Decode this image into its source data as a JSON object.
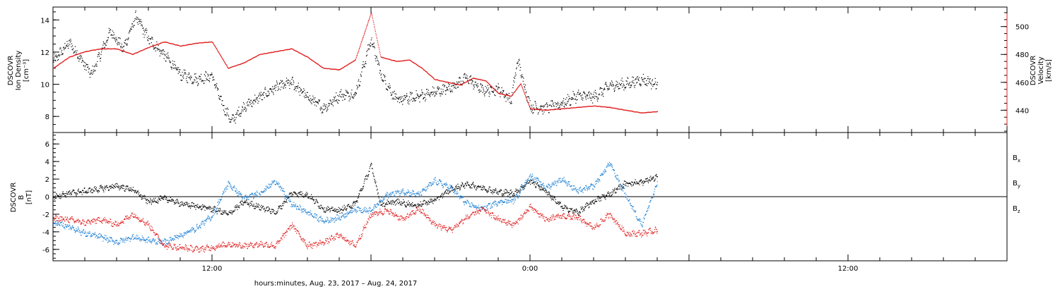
{
  "chart_data": [
    {
      "type": "scatter",
      "panel": "top",
      "ylabel": [
        "DSCOVR",
        "Ion Density",
        "[cm⁻³]"
      ],
      "ylabel_right": [
        "DSCOVR",
        "Velocity",
        "[km/s]"
      ],
      "ylim": [
        7,
        14.8
      ],
      "ylim_right": [
        424,
        514
      ],
      "yticks": [
        8,
        10,
        12,
        14
      ],
      "yticks_right": [
        440,
        460,
        480,
        500
      ],
      "series": [
        {
          "name": "",
          "axis": "left",
          "color": "#000000",
          "points": [
            [
              0,
              11.4
            ],
            [
              0.5,
              12.6
            ],
            [
              1.2,
              10.6
            ],
            [
              1.8,
              13.3
            ],
            [
              2.2,
              12.2
            ],
            [
              2.6,
              14.2
            ],
            [
              3.0,
              12.8
            ],
            [
              3.5,
              11.8
            ],
            [
              4.0,
              10.6
            ],
            [
              4.5,
              10.3
            ],
            [
              5.0,
              10.5
            ],
            [
              5.3,
              8.8
            ],
            [
              5.6,
              7.7
            ],
            [
              6.0,
              8.6
            ],
            [
              6.5,
              9.2
            ],
            [
              7.0,
              9.8
            ],
            [
              7.5,
              10.1
            ],
            [
              8.0,
              9.2
            ],
            [
              8.5,
              8.5
            ],
            [
              9.0,
              9.3
            ],
            [
              9.5,
              9.4
            ],
            [
              10.0,
              12.8
            ],
            [
              10.3,
              10.6
            ],
            [
              10.8,
              9.0
            ],
            [
              11.4,
              9.2
            ],
            [
              12.0,
              9.5
            ],
            [
              12.5,
              9.8
            ],
            [
              13.0,
              10.4
            ],
            [
              13.5,
              9.6
            ],
            [
              14.0,
              9.7
            ],
            [
              14.4,
              9.0
            ],
            [
              14.6,
              11.5
            ],
            [
              15.0,
              8.6
            ],
            [
              15.5,
              8.5
            ],
            [
              16.0,
              8.8
            ],
            [
              16.5,
              9.3
            ],
            [
              17.0,
              9.2
            ],
            [
              17.5,
              9.9
            ],
            [
              18.0,
              10.0
            ],
            [
              18.5,
              10.3
            ],
            [
              19.0,
              10.0
            ]
          ]
        },
        {
          "name": "",
          "axis": "right",
          "color": "#e02020",
          "points": [
            [
              0,
              470
            ],
            [
              0.5,
              478
            ],
            [
              1.0,
              482
            ],
            [
              1.5,
              484
            ],
            [
              2.0,
              484
            ],
            [
              2.5,
              480
            ],
            [
              3.0,
              485
            ],
            [
              3.5,
              489
            ],
            [
              4.0,
              486
            ],
            [
              4.5,
              488
            ],
            [
              5.0,
              489
            ],
            [
              5.5,
              470
            ],
            [
              6.0,
              474
            ],
            [
              6.5,
              480
            ],
            [
              7.0,
              482
            ],
            [
              7.5,
              484
            ],
            [
              8.0,
              478
            ],
            [
              8.5,
              470
            ],
            [
              9.0,
              469
            ],
            [
              9.5,
              476
            ],
            [
              10.0,
              510
            ],
            [
              10.3,
              478
            ],
            [
              10.8,
              475
            ],
            [
              11.2,
              476
            ],
            [
              11.6,
              470
            ],
            [
              12.0,
              462
            ],
            [
              12.4,
              460
            ],
            [
              12.8,
              458
            ],
            [
              13.2,
              463
            ],
            [
              13.6,
              461
            ],
            [
              14.0,
              452
            ],
            [
              14.4,
              450
            ],
            [
              14.7,
              459
            ],
            [
              15.0,
              441
            ],
            [
              15.5,
              440
            ],
            [
              16.0,
              441
            ],
            [
              16.5,
              442
            ],
            [
              17.0,
              443
            ],
            [
              17.5,
              442
            ],
            [
              18.0,
              440
            ],
            [
              18.5,
              438
            ],
            [
              19.0,
              439
            ]
          ]
        }
      ]
    },
    {
      "type": "scatter",
      "panel": "bottom",
      "ylabel": [
        "DSCOVR",
        "B",
        "[nT]"
      ],
      "ylim": [
        -7.3,
        7.3
      ],
      "yticks": [
        -6,
        -4,
        -2,
        0,
        2,
        4,
        6
      ],
      "zero_line": true,
      "series": [
        {
          "name": "Bx",
          "color": "#000000",
          "points": [
            [
              0,
              0
            ],
            [
              0.5,
              0.4
            ],
            [
              1.0,
              0.6
            ],
            [
              1.5,
              0.9
            ],
            [
              2.0,
              1.2
            ],
            [
              2.5,
              0.8
            ],
            [
              3.0,
              -0.6
            ],
            [
              3.5,
              -0.2
            ],
            [
              4.0,
              -0.8
            ],
            [
              4.5,
              -1.1
            ],
            [
              5.0,
              -1.4
            ],
            [
              5.5,
              -2.0
            ],
            [
              6.0,
              -0.6
            ],
            [
              6.5,
              -1.2
            ],
            [
              7.0,
              -1.8
            ],
            [
              7.5,
              0.4
            ],
            [
              8.0,
              0.2
            ],
            [
              8.5,
              -1.4
            ],
            [
              9.0,
              -1.6
            ],
            [
              9.5,
              -0.8
            ],
            [
              10.0,
              3.5
            ],
            [
              10.3,
              -0.9
            ],
            [
              10.8,
              -0.6
            ],
            [
              11.4,
              -1.0
            ],
            [
              12.0,
              -0.4
            ],
            [
              12.5,
              0.8
            ],
            [
              13.0,
              1.4
            ],
            [
              13.5,
              1.0
            ],
            [
              14.0,
              0.5
            ],
            [
              14.5,
              0.4
            ],
            [
              15.0,
              1.8
            ],
            [
              15.5,
              0.6
            ],
            [
              16.0,
              -1.2
            ],
            [
              16.5,
              -1.8
            ],
            [
              17.0,
              -0.5
            ],
            [
              17.5,
              0.3
            ],
            [
              18.0,
              1.5
            ],
            [
              18.5,
              1.6
            ],
            [
              19.0,
              2.3
            ]
          ]
        },
        {
          "name": "By",
          "color": "#1a7fd4",
          "points": [
            [
              0,
              -3.0
            ],
            [
              0.5,
              -3.4
            ],
            [
              1.0,
              -4.2
            ],
            [
              1.5,
              -4.6
            ],
            [
              2.0,
              -5.2
            ],
            [
              2.5,
              -4.6
            ],
            [
              3.0,
              -5.0
            ],
            [
              3.5,
              -5.2
            ],
            [
              4.0,
              -4.4
            ],
            [
              4.5,
              -3.6
            ],
            [
              5.0,
              -2.2
            ],
            [
              5.5,
              1.5
            ],
            [
              6.0,
              -0.2
            ],
            [
              6.5,
              0.4
            ],
            [
              7.0,
              1.8
            ],
            [
              7.5,
              -0.9
            ],
            [
              8.0,
              -1.8
            ],
            [
              8.5,
              -2.8
            ],
            [
              9.0,
              -2.4
            ],
            [
              9.5,
              -1.4
            ],
            [
              10.0,
              -1.6
            ],
            [
              10.5,
              0.2
            ],
            [
              11.0,
              0.6
            ],
            [
              11.5,
              0.2
            ],
            [
              12.0,
              1.8
            ],
            [
              12.5,
              1.0
            ],
            [
              13.0,
              -0.8
            ],
            [
              13.5,
              -1.4
            ],
            [
              14.0,
              -0.6
            ],
            [
              14.5,
              -0.4
            ],
            [
              15.0,
              2.4
            ],
            [
              15.5,
              1.0
            ],
            [
              16.0,
              2.0
            ],
            [
              16.5,
              0.6
            ],
            [
              17.0,
              1.2
            ],
            [
              17.5,
              3.8
            ],
            [
              18.0,
              0.2
            ],
            [
              18.5,
              -3.2
            ],
            [
              19.0,
              1.5
            ]
          ]
        },
        {
          "name": "Bz",
          "color": "#e02020",
          "points": [
            [
              0,
              -2.5
            ],
            [
              0.5,
              -2.6
            ],
            [
              1.0,
              -3.0
            ],
            [
              1.5,
              -2.6
            ],
            [
              2.0,
              -3.2
            ],
            [
              2.5,
              -2.0
            ],
            [
              3.0,
              -3.2
            ],
            [
              3.5,
              -5.6
            ],
            [
              4.0,
              -5.8
            ],
            [
              4.5,
              -6.0
            ],
            [
              5.0,
              -5.8
            ],
            [
              5.5,
              -5.4
            ],
            [
              6.0,
              -5.6
            ],
            [
              6.5,
              -5.4
            ],
            [
              7.0,
              -5.6
            ],
            [
              7.5,
              -3.2
            ],
            [
              8.0,
              -5.6
            ],
            [
              8.5,
              -5.2
            ],
            [
              9.0,
              -4.4
            ],
            [
              9.5,
              -5.6
            ],
            [
              10.0,
              -2.0
            ],
            [
              10.5,
              -1.6
            ],
            [
              11.0,
              -2.6
            ],
            [
              11.5,
              -1.4
            ],
            [
              12.0,
              -3.2
            ],
            [
              12.5,
              -3.8
            ],
            [
              13.0,
              -2.4
            ],
            [
              13.5,
              -1.4
            ],
            [
              14.0,
              -2.6
            ],
            [
              14.5,
              -3.2
            ],
            [
              15.0,
              -1.2
            ],
            [
              15.5,
              -2.6
            ],
            [
              16.0,
              -2.2
            ],
            [
              16.5,
              -2.4
            ],
            [
              17.0,
              -3.6
            ],
            [
              17.5,
              -2.0
            ],
            [
              18.0,
              -4.2
            ],
            [
              18.5,
              -4.2
            ],
            [
              19.0,
              -3.8
            ]
          ]
        }
      ]
    }
  ],
  "x_axis": {
    "range_hours": [
      0,
      30
    ],
    "tick_labels": [
      {
        "hour": 5,
        "label": "12:00"
      },
      {
        "hour": 15,
        "label": "0:00"
      },
      {
        "hour": 25,
        "label": "12:00"
      }
    ],
    "xlabel": "hours:minutes, Aug. 23, 2017 – Aug. 24, 2017"
  },
  "legend": [
    {
      "name": "Bx",
      "base": "B",
      "sub": "x",
      "color": "#000000"
    },
    {
      "name": "By",
      "base": "B",
      "sub": "y",
      "color": "#1a7fd4"
    },
    {
      "name": "Bz",
      "base": "B",
      "sub": "z",
      "color": "#e02020"
    }
  ],
  "legend_placement": "right"
}
